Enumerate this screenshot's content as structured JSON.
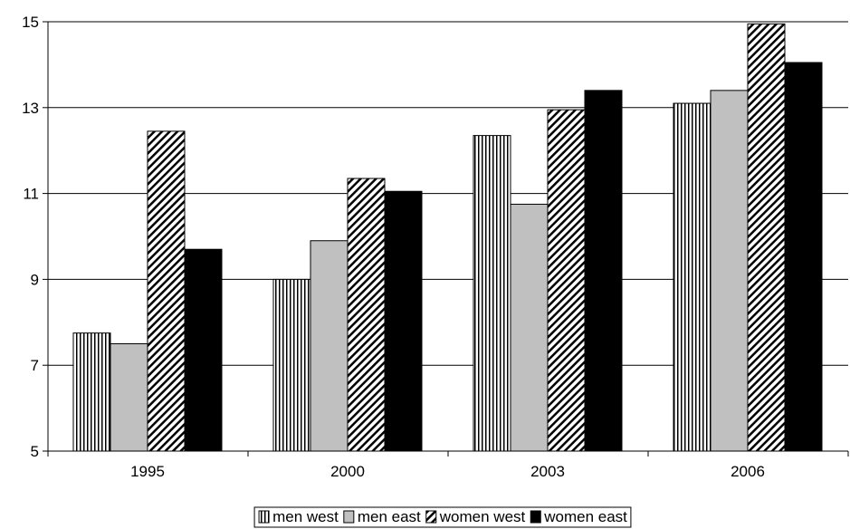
{
  "chart_data": {
    "type": "bar",
    "title": "",
    "xlabel": "",
    "ylabel": "",
    "categories": [
      "1995",
      "2000",
      "2003",
      "2006"
    ],
    "ylim": [
      5,
      15
    ],
    "yticks": [
      5,
      7,
      9,
      11,
      13,
      15
    ],
    "grid": "horizontal",
    "legend_position": "bottom",
    "series": [
      {
        "name": "men west",
        "values": [
          7.75,
          9.0,
          12.35,
          13.1
        ],
        "pattern": "vertical-stripes",
        "color": "#ffffff"
      },
      {
        "name": "men east",
        "values": [
          7.5,
          9.9,
          10.75,
          13.4
        ],
        "pattern": "solid",
        "color": "#c0c0c0"
      },
      {
        "name": "women west",
        "values": [
          12.45,
          11.35,
          12.95,
          14.95
        ],
        "pattern": "diagonal-hatch",
        "color": "#ffffff"
      },
      {
        "name": "women east",
        "values": [
          9.7,
          11.05,
          13.4,
          14.05
        ],
        "pattern": "solid",
        "color": "#000000"
      }
    ]
  }
}
